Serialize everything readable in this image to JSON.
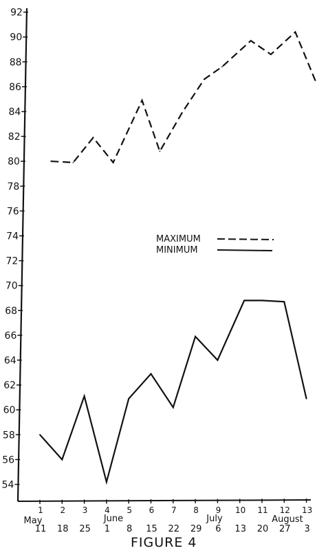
{
  "chart_data": {
    "type": "line",
    "title": "",
    "caption": "FIGURE 4",
    "xlabel": "",
    "ylabel": "",
    "ylim": [
      52,
      92
    ],
    "y_ticks": [
      "54",
      "56",
      "58",
      "60",
      "62",
      "64",
      "66",
      "68",
      "70",
      "72",
      "74",
      "76",
      "78",
      "80",
      "82",
      "84",
      "86",
      "88",
      "90",
      "92"
    ],
    "x_ticks": [
      "1",
      "2",
      "3",
      "4",
      "5",
      "6",
      "7",
      "8",
      "9",
      "10",
      "11",
      "12",
      "13"
    ],
    "x_dates": [
      "11",
      "18",
      "25",
      "1",
      "8",
      "15",
      "22",
      "29",
      "6",
      "13",
      "20",
      "27",
      "3"
    ],
    "months": [
      "May",
      "June",
      "July",
      "August"
    ],
    "legend": {
      "position": "center-right",
      "max_label": "MAXIMUM",
      "min_label": "MINIMUM"
    },
    "grid": false,
    "series": [
      {
        "name": "MAXIMUM",
        "style": "dashed",
        "x": [
          1.5,
          2.5,
          3.4,
          4.3,
          5.6,
          6.4,
          7.4,
          8.4,
          9.2,
          10.5,
          11.4,
          12.5,
          13.4
        ],
        "y": [
          80,
          79.9,
          81.9,
          79.9,
          84.9,
          80.8,
          83.9,
          86.6,
          87.6,
          89.7,
          88.6,
          90.4,
          86.5
        ]
      },
      {
        "name": "MINIMUM",
        "style": "solid",
        "x": [
          1,
          2,
          3,
          4,
          5,
          6,
          7,
          8,
          9,
          10.2,
          11,
          12,
          13
        ],
        "y": [
          58,
          56,
          61.1,
          54.2,
          60.9,
          62.9,
          60.2,
          65.9,
          64.0,
          68.8,
          68.8,
          68.7,
          60.9
        ]
      }
    ]
  }
}
